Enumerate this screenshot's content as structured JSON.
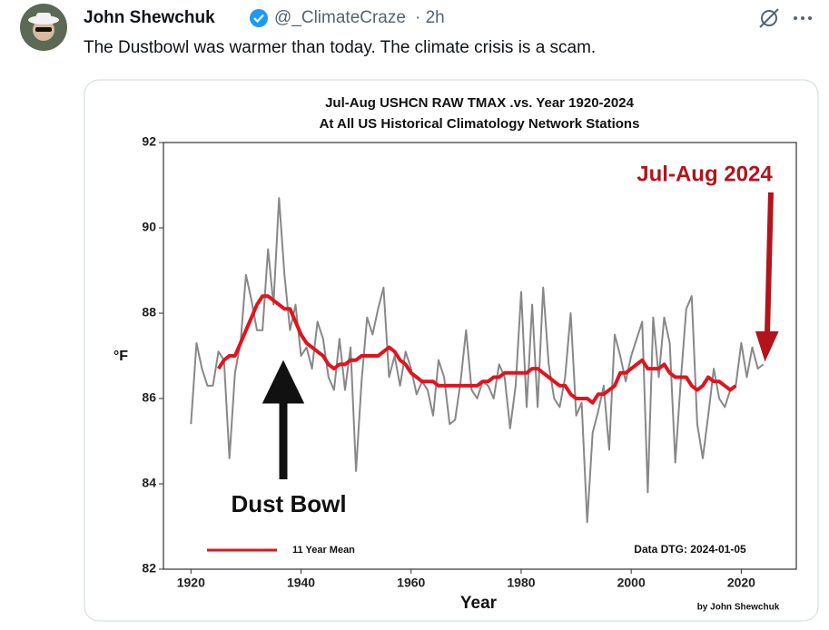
{
  "tweet": {
    "author": "John Shewchuk",
    "handle": "@_ClimateCraze",
    "time": "· 2h",
    "text": "The Dustbowl was warmer than today.  The climate crisis is a scam."
  },
  "chart_data": {
    "type": "line",
    "title": "Jul-Aug USHCN RAW TMAX .vs. Year 1920-2024",
    "subtitle": "At All US Historical Climatology Network Stations",
    "xlabel": "Year",
    "ylabel": "°F",
    "annotations": [
      "Jul-Aug 2024",
      "Dust Bowl",
      "Data DTG: 2024-01-05",
      "by John Shewchuk"
    ],
    "x": [
      1920,
      1921,
      1922,
      1923,
      1924,
      1925,
      1926,
      1927,
      1928,
      1929,
      1930,
      1931,
      1932,
      1933,
      1934,
      1935,
      1936,
      1937,
      1938,
      1939,
      1940,
      1941,
      1942,
      1943,
      1944,
      1945,
      1946,
      1947,
      1948,
      1949,
      1950,
      1951,
      1952,
      1953,
      1954,
      1955,
      1956,
      1957,
      1958,
      1959,
      1960,
      1961,
      1962,
      1963,
      1964,
      1965,
      1966,
      1967,
      1968,
      1969,
      1970,
      1971,
      1972,
      1973,
      1974,
      1975,
      1976,
      1977,
      1978,
      1979,
      1980,
      1981,
      1982,
      1983,
      1984,
      1985,
      1986,
      1987,
      1988,
      1989,
      1990,
      1991,
      1992,
      1993,
      1994,
      1995,
      1996,
      1997,
      1998,
      1999,
      2000,
      2001,
      2002,
      2003,
      2004,
      2005,
      2006,
      2007,
      2008,
      2009,
      2010,
      2011,
      2012,
      2013,
      2014,
      2015,
      2016,
      2017,
      2018,
      2019,
      2020,
      2021,
      2022,
      2023,
      2024
    ],
    "series": [
      {
        "color": "#888888",
        "values": [
          85.4,
          87.3,
          86.7,
          86.3,
          86.3,
          87.1,
          86.9,
          84.6,
          86.6,
          87.3,
          88.9,
          88.3,
          87.6,
          87.6,
          89.5,
          88.2,
          90.7,
          88.9,
          87.6,
          88.2,
          87.0,
          87.2,
          86.7,
          87.8,
          87.4,
          86.5,
          86.2,
          87.4,
          86.2,
          87.2,
          84.3,
          86.4,
          87.9,
          87.5,
          88.1,
          88.6,
          86.5,
          87.0,
          86.3,
          87.1,
          86.7,
          86.1,
          86.4,
          86.2,
          85.6,
          86.9,
          86.5,
          85.4,
          85.5,
          86.4,
          87.6,
          86.2,
          86.0,
          86.4,
          86.3,
          86.0,
          86.8,
          86.5,
          85.3,
          86.3,
          88.5,
          85.8,
          88.2,
          85.8,
          88.6,
          86.8,
          86.0,
          85.8,
          86.5,
          88.0,
          85.6,
          85.9,
          83.1,
          85.2,
          85.7,
          86.3,
          84.8,
          87.5,
          87.0,
          86.4,
          87.0,
          87.4,
          87.8,
          83.8,
          87.9,
          86.5,
          87.9,
          87.3,
          84.5,
          86.4,
          88.1,
          88.4,
          85.4,
          84.6,
          85.6,
          86.7,
          86.0,
          85.8,
          86.2,
          86.3,
          87.3,
          86.5,
          87.2,
          86.7,
          86.8
        ]
      },
      {
        "name": "11 Year Mean",
        "color": "#e0141e",
        "values": [
          null,
          null,
          null,
          null,
          null,
          86.7,
          86.9,
          87.0,
          87.0,
          87.3,
          87.6,
          87.9,
          88.2,
          88.4,
          88.4,
          88.3,
          88.2,
          88.1,
          88.1,
          87.8,
          87.5,
          87.3,
          87.2,
          87.1,
          87.0,
          86.8,
          86.7,
          86.8,
          86.8,
          86.9,
          86.9,
          87.0,
          87.0,
          87.0,
          87.0,
          87.1,
          87.2,
          87.1,
          86.9,
          86.8,
          86.6,
          86.5,
          86.4,
          86.4,
          86.4,
          86.3,
          86.3,
          86.3,
          86.3,
          86.3,
          86.3,
          86.3,
          86.3,
          86.4,
          86.4,
          86.5,
          86.5,
          86.6,
          86.6,
          86.6,
          86.6,
          86.6,
          86.7,
          86.7,
          86.6,
          86.5,
          86.4,
          86.3,
          86.3,
          86.1,
          86.0,
          86.0,
          86.0,
          85.9,
          86.1,
          86.1,
          86.2,
          86.3,
          86.6,
          86.6,
          86.7,
          86.8,
          86.9,
          86.7,
          86.7,
          86.7,
          86.8,
          86.6,
          86.5,
          86.5,
          86.5,
          86.3,
          86.2,
          86.3,
          86.5,
          86.4,
          86.4,
          86.3,
          86.2,
          86.3,
          null,
          null,
          null,
          null,
          null
        ]
      }
    ],
    "xlim": [
      1915,
      2030
    ],
    "ylim": [
      82,
      92
    ],
    "xticks": [
      1920,
      1940,
      1960,
      1980,
      2000,
      2020
    ],
    "yticks": [
      82,
      84,
      86,
      88,
      90,
      92
    ],
    "legend": "lower left"
  }
}
